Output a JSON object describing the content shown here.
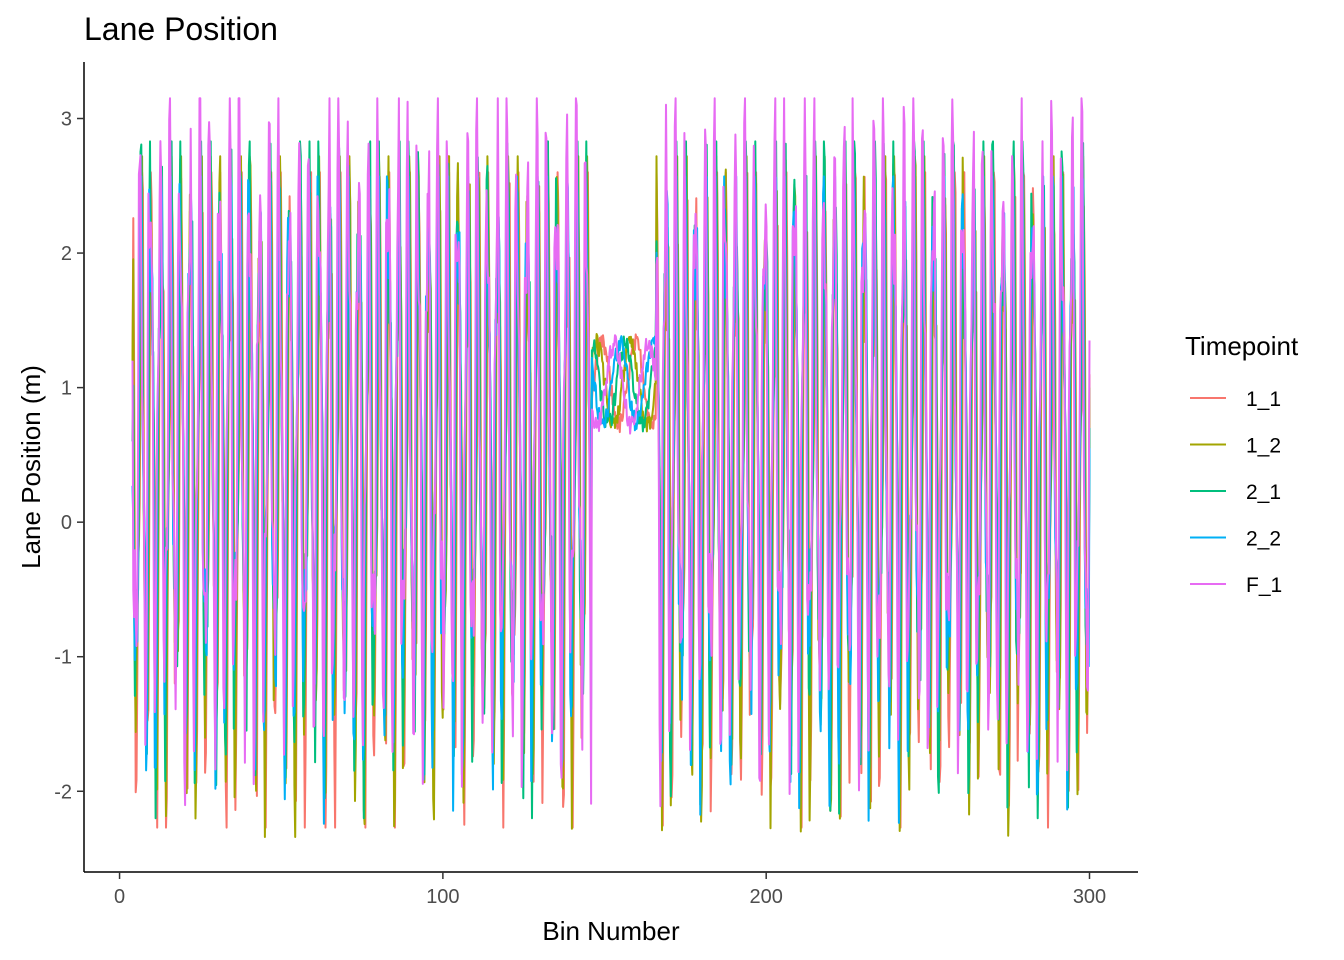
{
  "chart_data": {
    "type": "line",
    "title": "Lane Position",
    "xlabel": "Bin Number",
    "ylabel": "Lane Position (m)",
    "xlim": [
      -11,
      315
    ],
    "ylim": [
      -2.6,
      3.42
    ],
    "xticks": [
      0,
      100,
      200,
      300
    ],
    "yticks": [
      -2,
      -1,
      0,
      1,
      2,
      3
    ],
    "xtick_labels": [
      "0",
      "100",
      "200",
      "300"
    ],
    "ytick_labels": [
      "-2",
      "-1",
      "0",
      "1",
      "2",
      "3"
    ],
    "grid": false,
    "legend": {
      "title": "Timepoint",
      "position": "right"
    },
    "x_range": [
      4,
      300
    ],
    "series": [
      {
        "name": "1_1",
        "color": "#F8766D",
        "y_start": 1.2,
        "y_end": 1.1,
        "min": -2.27,
        "max": 2.6
      },
      {
        "name": "1_2",
        "color": "#A3A500",
        "y_start": 1.2,
        "y_end": 1.0,
        "min": -2.34,
        "max": 2.72
      },
      {
        "name": "2_1",
        "color": "#00BF7D",
        "y_start": 0.6,
        "y_end": 0.7,
        "min": -2.2,
        "max": 2.83
      },
      {
        "name": "2_2",
        "color": "#00B0F6",
        "y_start": 0.27,
        "y_end": 0.55,
        "min": -2.3,
        "max": 2.57
      },
      {
        "name": "F_1",
        "color": "#E76BF3",
        "y_start": 1.2,
        "y_end": 1.35,
        "min": -2.17,
        "max": 3.15
      }
    ]
  }
}
